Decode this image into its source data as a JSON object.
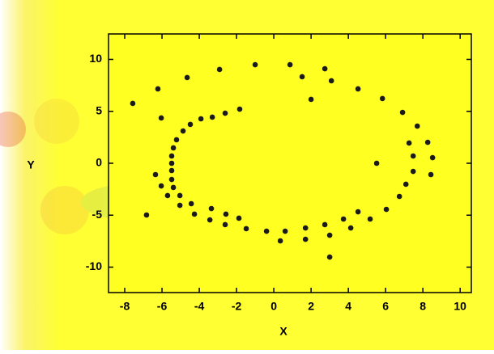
{
  "chart_data": {
    "type": "scatter",
    "x_label": "X",
    "y_label": "Y",
    "color": "#1a1a1a",
    "x": [
      -7.57,
      -6.22,
      -6.04,
      -4.65,
      -2.91,
      -1.0,
      0.87,
      1.52,
      2.0,
      2.74,
      3.09,
      4.52,
      5.83,
      6.91,
      7.7,
      7.26,
      8.26,
      7.48,
      8.52,
      5.52,
      7.48,
      8.43,
      7.09,
      6.74,
      6.04,
      5.17,
      4.52,
      3.74,
      4.13,
      2.74,
      3.0,
      3.0,
      1.7,
      1.7,
      0.61,
      0.35,
      -0.39,
      -1.48,
      -1.87,
      -2.57,
      -2.61,
      -3.35,
      -3.43,
      -4.26,
      -4.43,
      -5.04,
      -5.04,
      -5.39,
      -6.04,
      -6.35,
      -5.7,
      -6.83,
      -5.48,
      -5.48,
      -5.48,
      -5.48,
      -5.39,
      -5.22,
      -4.87,
      -4.48,
      -3.91,
      -3.3,
      -2.61,
      -1.83
    ],
    "y": [
      5.76,
      7.16,
      4.36,
      8.25,
      9.03,
      9.49,
      9.49,
      8.33,
      6.15,
      9.1,
      7.94,
      7.16,
      6.23,
      4.9,
      3.58,
      1.95,
      2.02,
      0.7,
      0.54,
      0.0,
      -0.78,
      -1.09,
      -2.02,
      -3.19,
      -4.44,
      -5.37,
      -4.67,
      -5.37,
      -6.23,
      -5.91,
      -6.93,
      -9.03,
      -6.23,
      -7.32,
      -6.54,
      -7.47,
      -6.54,
      -6.3,
      -5.29,
      -4.9,
      -5.91,
      -4.36,
      -5.45,
      -4.9,
      -3.89,
      -4.05,
      -3.11,
      -2.33,
      -2.18,
      -1.09,
      -3.11,
      -4.98,
      -1.56,
      -0.7,
      0.0,
      0.7,
      1.48,
      2.26,
      3.11,
      3.74,
      4.28,
      4.44,
      4.82,
      5.21
    ],
    "xlim": [
      -8.87,
      10.6
    ],
    "ylim": [
      -12.45,
      12.45
    ],
    "xticks": [
      -8,
      -6,
      -4,
      -2,
      0,
      2,
      4,
      6,
      8,
      10
    ],
    "yticks": [
      -10,
      -5,
      0,
      5,
      10
    ]
  }
}
